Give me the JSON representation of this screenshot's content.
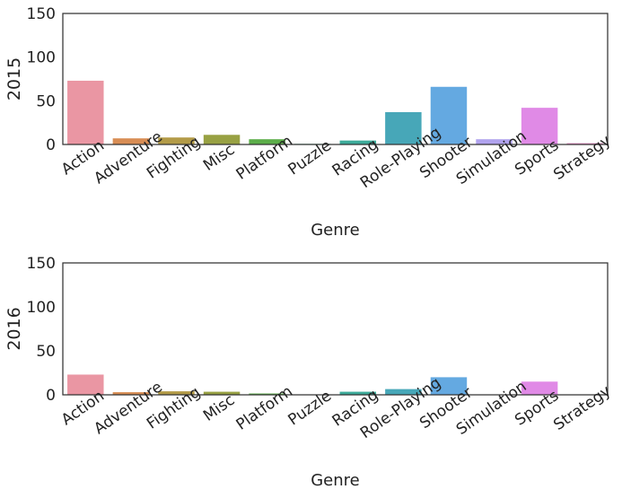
{
  "chart_data": [
    {
      "type": "bar",
      "ylabel": "2015",
      "xlabel": "Genre",
      "ylim": [
        0,
        150
      ],
      "yticks": [
        0,
        50,
        100,
        150
      ],
      "grid": false,
      "categories": [
        "Action",
        "Adventure",
        "Fighting",
        "Misc",
        "Platform",
        "Puzzle",
        "Racing",
        "Role-Playing",
        "Shooter",
        "Simulation",
        "Sports",
        "Strategy"
      ],
      "values": [
        73,
        7,
        8,
        11,
        6,
        0.7,
        4.5,
        37,
        66,
        6,
        42,
        1.5
      ]
    },
    {
      "type": "bar",
      "ylabel": "2016",
      "xlabel": "Genre",
      "ylim": [
        0,
        150
      ],
      "yticks": [
        0,
        50,
        100,
        150
      ],
      "grid": false,
      "categories": [
        "Action",
        "Adventure",
        "Fighting",
        "Misc",
        "Platform",
        "Puzzle",
        "Racing",
        "Role-Playing",
        "Shooter",
        "Simulation",
        "Sports",
        "Strategy"
      ],
      "values": [
        23,
        3,
        4,
        3.5,
        1.5,
        0.2,
        3.5,
        6.5,
        20,
        0.5,
        15,
        0.5
      ]
    }
  ],
  "colors": [
    "#ea96a3",
    "#d88d54",
    "#b39b48",
    "#98a143",
    "#5cae4a",
    "#51ad7c",
    "#3dab9a",
    "#47a7b8",
    "#64a9e1",
    "#b1a3ee",
    "#e08ae6",
    "#e992c8"
  ]
}
